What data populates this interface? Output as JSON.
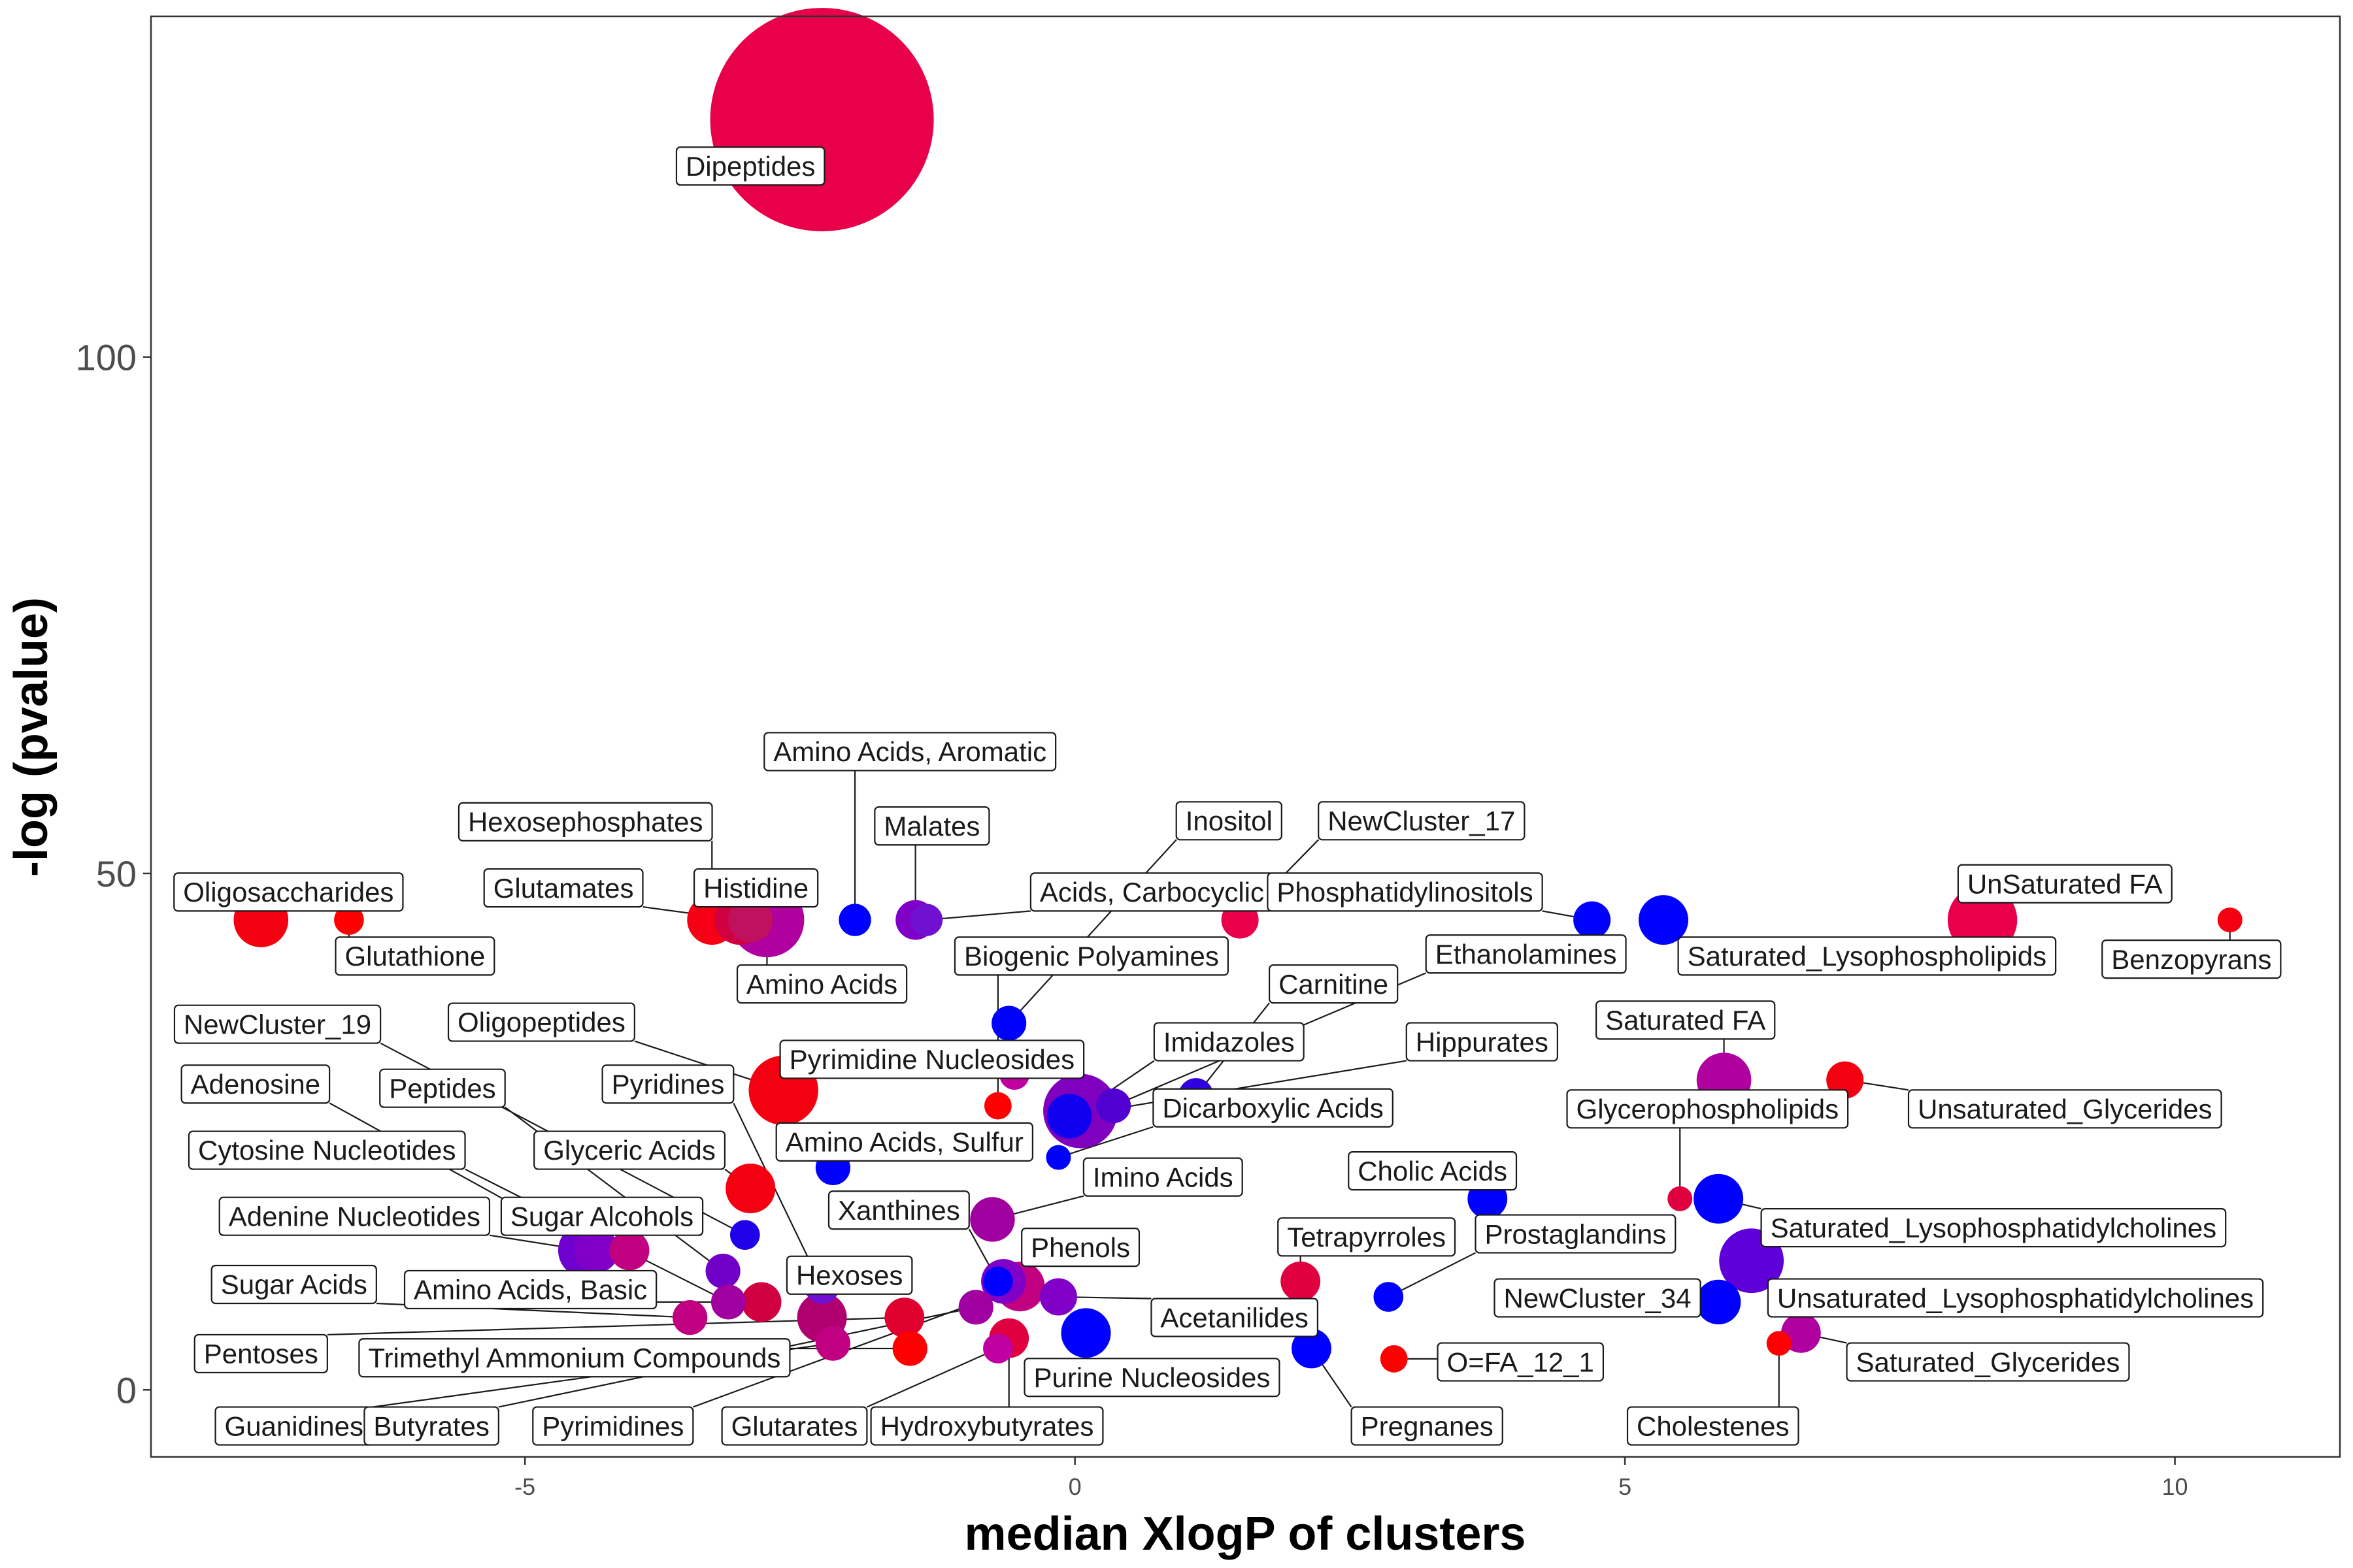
{
  "chart_data": {
    "type": "scatter",
    "xlabel": "median XlogP of clusters",
    "ylabel": "-log (pvalue)",
    "xlim": [
      -8.4,
      11.5
    ],
    "ylim": [
      -6.5,
      133
    ],
    "xticks": [
      -5,
      0,
      5,
      10
    ],
    "yticks": [
      0,
      50,
      100
    ],
    "grid": false,
    "points": [
      {
        "label": "Dipeptides",
        "x": -2.3,
        "y": 123,
        "size": 90,
        "color": "#e8004a",
        "lx": -2.95,
        "ly": 118.5
      },
      {
        "label": "Oligosaccharides",
        "x": -7.4,
        "y": 45.5,
        "size": 22,
        "color": "#f50010",
        "lx": -7.15,
        "ly": 48.2
      },
      {
        "label": "Glutathione",
        "x": -6.6,
        "y": 45.5,
        "size": 12,
        "color": "#ff0000",
        "lx": -6.0,
        "ly": 42
      },
      {
        "label": "Hexosephosphates",
        "x": -3.3,
        "y": 45.5,
        "size": 20,
        "color": "#f50015",
        "lx": -4.45,
        "ly": 55
      },
      {
        "label": "Glutamates",
        "x": -3.05,
        "y": 45.5,
        "size": 20,
        "color": "#d00040",
        "lx": -4.65,
        "ly": 48.6
      },
      {
        "label": "Histidine",
        "x": -2.95,
        "y": 45.5,
        "size": 18,
        "color": "#c0105e",
        "lx": -2.9,
        "ly": 48.6
      },
      {
        "label": "Amino Acids",
        "x": -2.8,
        "y": 45.5,
        "size": 30,
        "color": "#b000a0",
        "lx": -2.3,
        "ly": 39.3
      },
      {
        "label": "Amino Acids, Aromatic",
        "x": -2.0,
        "y": 45.5,
        "size": 13,
        "color": "#0000ff",
        "lx": -1.5,
        "ly": 61.8
      },
      {
        "label": "Malates",
        "x": -1.45,
        "y": 45.5,
        "size": 16,
        "color": "#8000c8",
        "lx": -1.3,
        "ly": 54.6
      },
      {
        "label": "Acids, Carbocyclic",
        "x": -1.35,
        "y": 45.5,
        "size": 13,
        "color": "#7010d0",
        "lx": 0.7,
        "ly": 48.2
      },
      {
        "label": "Inositol",
        "x": -0.6,
        "y": 35.5,
        "size": 14,
        "color": "#0000ff",
        "lx": 1.4,
        "ly": 55.1
      },
      {
        "label": "Biogenic Polyamines",
        "x": -0.7,
        "y": 27.5,
        "size": 11,
        "color": "#ff0000",
        "lx": 0.15,
        "ly": 42
      },
      {
        "label": "NewCluster_17",
        "x": 1.5,
        "y": 45.5,
        "size": 15,
        "color": "#e8004a",
        "lx": 3.15,
        "ly": 55.1
      },
      {
        "label": "Phosphatidylinositols",
        "x": 4.7,
        "y": 45.5,
        "size": 15,
        "color": "#0000ff",
        "lx": 3.0,
        "ly": 48.2
      },
      {
        "label": "Saturated_Lysophospholipids",
        "x": 5.35,
        "y": 45.5,
        "size": 20,
        "color": "#0000ff",
        "lx": 7.2,
        "ly": 42
      },
      {
        "label": "UnSaturated FA",
        "x": 8.25,
        "y": 45.5,
        "size": 28,
        "color": "#e8004a",
        "lx": 9.0,
        "ly": 49
      },
      {
        "label": "Benzopyrans",
        "x": 10.5,
        "y": 45.5,
        "size": 10,
        "color": "#f50010",
        "lx": 10.15,
        "ly": 41.7
      },
      {
        "label": "Carnitine",
        "x": 1.1,
        "y": 28.5,
        "size": 14,
        "color": "#3000e0",
        "lx": 2.35,
        "ly": 39.3
      },
      {
        "label": "Ethanolamines",
        "x": 0.35,
        "y": 27.5,
        "size": 14,
        "color": "#5000d0",
        "lx": 4.1,
        "ly": 42.2
      },
      {
        "label": "Imidazoles",
        "x": 0.05,
        "y": 27,
        "size": 30,
        "color": "#8000c0",
        "lx": 1.4,
        "ly": 33.7
      },
      {
        "label": "Hippurates",
        "x": -0.05,
        "y": 26.5,
        "size": 18,
        "color": "#1000f0",
        "lx": 3.7,
        "ly": 33.7
      },
      {
        "label": "Dicarboxylic Acids",
        "x": -0.15,
        "y": 22.5,
        "size": 10,
        "color": "#0000ff",
        "lx": 1.8,
        "ly": 27.3
      },
      {
        "label": "NewCluster_19",
        "x": -3.0,
        "y": 15,
        "size": 12,
        "color": "#2000e8",
        "lx": -7.25,
        "ly": 35.4
      },
      {
        "label": "Oligopeptides",
        "x": -2.65,
        "y": 29,
        "size": 28,
        "color": "#f50010",
        "lx": -4.85,
        "ly": 35.6
      },
      {
        "label": "Pyrimidine Nucleosides",
        "x": -0.55,
        "y": 30.5,
        "size": 12,
        "color": "#c000a0",
        "lx": -1.3,
        "ly": 32
      },
      {
        "label": "Adenosine",
        "x": -4.35,
        "y": 13.5,
        "size": 18,
        "color": "#8000c8",
        "lx": -7.45,
        "ly": 29.6
      },
      {
        "label": "Peptides",
        "x": -3.2,
        "y": 11.5,
        "size": 14,
        "color": "#7000c8",
        "lx": -5.75,
        "ly": 29.2
      },
      {
        "label": "Pyridines",
        "x": -2.3,
        "y": 10,
        "size": 14,
        "color": "#7010d0",
        "lx": -3.7,
        "ly": 29.6
      },
      {
        "label": "Amino Acids, Sulfur",
        "x": -2.2,
        "y": 21.5,
        "size": 14,
        "color": "#0000ff",
        "lx": -1.55,
        "ly": 24
      },
      {
        "label": "Cytosine Nucleotides",
        "x": -3.15,
        "y": 8.5,
        "size": 14,
        "color": "#a000a0",
        "lx": -6.8,
        "ly": 23.2
      },
      {
        "label": "Glyceric Acids",
        "x": -2.95,
        "y": 19.5,
        "size": 20,
        "color": "#f50010",
        "lx": -4.05,
        "ly": 23.2
      },
      {
        "label": "Adenine Nucleotides",
        "x": -4.45,
        "y": 13.5,
        "size": 22,
        "color": "#7000d0",
        "lx": -6.55,
        "ly": 16.8
      },
      {
        "label": "Sugar Alcohols",
        "x": -4.05,
        "y": 13.5,
        "size": 16,
        "color": "#c00080",
        "lx": -4.3,
        "ly": 16.8
      },
      {
        "label": "Xanthines",
        "x": -0.7,
        "y": 10.5,
        "size": 12,
        "color": "#0000ff",
        "lx": -1.6,
        "ly": 17.4
      },
      {
        "label": "Imino Acids",
        "x": -0.75,
        "y": 16.5,
        "size": 18,
        "color": "#a000a0",
        "lx": 0.8,
        "ly": 20.6
      },
      {
        "label": "Phenols",
        "x": -0.65,
        "y": 10.5,
        "size": 18,
        "color": "#8000c8",
        "lx": 0.05,
        "ly": 13.8
      },
      {
        "label": "Sugar Acids",
        "x": -3.5,
        "y": 7,
        "size": 14,
        "color": "#c00080",
        "lx": -7.1,
        "ly": 10.2
      },
      {
        "label": "Amino Acids, Basic",
        "x": -2.85,
        "y": 8.5,
        "size": 16,
        "color": "#d00040",
        "lx": -4.95,
        "ly": 9.7
      },
      {
        "label": "Hexoses",
        "x": -2.3,
        "y": 7,
        "size": 20,
        "color": "#b00070",
        "lx": -2.05,
        "ly": 11.1
      },
      {
        "label": "Pentoses",
        "x": -1.55,
        "y": 7,
        "size": 16,
        "color": "#e00030",
        "lx": -7.4,
        "ly": 3.5
      },
      {
        "label": "Trimethyl Ammonium Compounds",
        "x": -1.5,
        "y": 4,
        "size": 14,
        "color": "#ff0000",
        "lx": -4.55,
        "ly": 3.1
      },
      {
        "label": "Guanidines",
        "x": -2.2,
        "y": 4.5,
        "size": 14,
        "color": "#c00080",
        "lx": -7.1,
        "ly": -3.5
      },
      {
        "label": "Butyrates",
        "x": -0.9,
        "y": 8,
        "size": 14,
        "color": "#a000a0",
        "lx": -5.85,
        "ly": -3.5
      },
      {
        "label": "Pyrimidines",
        "x": -0.5,
        "y": 10,
        "size": 20,
        "color": "#c00080",
        "lx": -4.2,
        "ly": -3.5
      },
      {
        "label": "Glutarates",
        "x": -0.7,
        "y": 4,
        "size": 12,
        "color": "#c000a0",
        "lx": -2.55,
        "ly": -3.5
      },
      {
        "label": "Hydroxybutyrates",
        "x": -0.6,
        "y": 5,
        "size": 16,
        "color": "#e00040",
        "lx": -0.8,
        "ly": -3.5
      },
      {
        "label": "Acetanilides",
        "x": -0.15,
        "y": 9,
        "size": 15,
        "color": "#8000c8",
        "lx": 1.45,
        "ly": 7
      },
      {
        "label": "Purine Nucleosides",
        "x": 0.1,
        "y": 5.5,
        "size": 20,
        "color": "#0000ff",
        "lx": 0.7,
        "ly": 1.2
      },
      {
        "label": "Cholic Acids",
        "x": 3.75,
        "y": 18.5,
        "size": 16,
        "color": "#0000ff",
        "lx": 3.25,
        "ly": 21.2
      },
      {
        "label": "Tetrapyrroles",
        "x": 2.05,
        "y": 10.5,
        "size": 16,
        "color": "#e00040",
        "lx": 2.65,
        "ly": 14.8
      },
      {
        "label": "Prostaglandins",
        "x": 2.85,
        "y": 9,
        "size": 12,
        "color": "#0000ff",
        "lx": 4.55,
        "ly": 15.1
      },
      {
        "label": "Pregnanes",
        "x": 2.15,
        "y": 4,
        "size": 16,
        "color": "#0000ff",
        "lx": 3.2,
        "ly": -3.5
      },
      {
        "label": "O=FA_12_1",
        "x": 2.9,
        "y": 3,
        "size": 11,
        "color": "#ff0000",
        "lx": 4.05,
        "ly": 2.7
      },
      {
        "label": "Saturated FA",
        "x": 5.9,
        "y": 30,
        "size": 22,
        "color": "#b000a0",
        "lx": 5.55,
        "ly": 35.8
      },
      {
        "label": "Unsaturated_Glycerides",
        "x": 7.0,
        "y": 30,
        "size": 15,
        "color": "#f50010",
        "lx": 9.0,
        "ly": 27.2
      },
      {
        "label": "Glycerophospholipids",
        "x": 5.5,
        "y": 18.5,
        "size": 10,
        "color": "#e00040",
        "lx": 5.75,
        "ly": 27.2
      },
      {
        "label": "Saturated_Lysophosphatidylcholines",
        "x": 5.85,
        "y": 18.5,
        "size": 20,
        "color": "#0000ff",
        "lx": 8.35,
        "ly": 15.7
      },
      {
        "label": "Unsaturated_Lysophosphatidylcholines",
        "x": 6.15,
        "y": 12.5,
        "size": 26,
        "color": "#6000d8",
        "lx": 8.55,
        "ly": 8.9
      },
      {
        "label": "NewCluster_34",
        "x": 5.85,
        "y": 8.5,
        "size": 18,
        "color": "#0000ff",
        "lx": 4.75,
        "ly": 8.9
      },
      {
        "label": "Saturated_Glycerides",
        "x": 6.6,
        "y": 5.5,
        "size": 16,
        "color": "#b000a0",
        "lx": 8.3,
        "ly": 2.7
      },
      {
        "label": "Cholestenes",
        "x": 6.4,
        "y": 4.5,
        "size": 10,
        "color": "#ff0000",
        "lx": 5.8,
        "ly": -3.5
      }
    ]
  }
}
